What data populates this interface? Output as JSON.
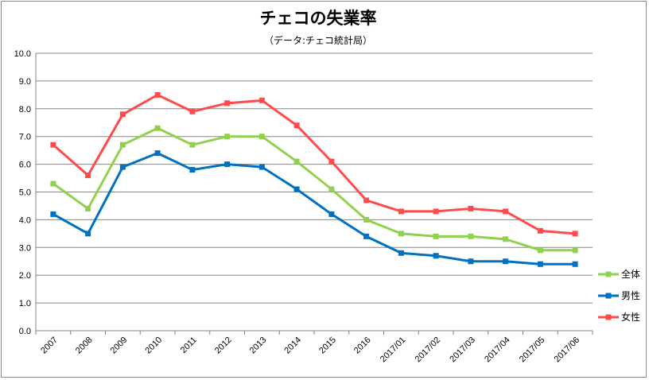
{
  "chart_data": {
    "type": "line",
    "title": "チェコの失業率",
    "subtitle": "（データ:チェコ統計局）",
    "categories": [
      "2007",
      "2008",
      "2009",
      "2010",
      "2011",
      "2012",
      "2013",
      "2014",
      "2015",
      "2016",
      "2017/01",
      "2017/02",
      "2017/03",
      "2017/04",
      "2017/05",
      "2017/06"
    ],
    "ylim": [
      0,
      10
    ],
    "yticks": [
      "0.0",
      "1.0",
      "2.0",
      "3.0",
      "4.0",
      "5.0",
      "6.0",
      "7.0",
      "8.0",
      "9.0",
      "10.0"
    ],
    "grid": true,
    "legend_position": "right",
    "series": [
      {
        "name": "全体",
        "color": "#92d050",
        "values": [
          5.3,
          4.4,
          6.7,
          7.3,
          6.7,
          7.0,
          7.0,
          6.1,
          5.1,
          4.0,
          3.5,
          3.4,
          3.4,
          3.3,
          2.9,
          2.9
        ]
      },
      {
        "name": "男性",
        "color": "#0070c0",
        "values": [
          4.2,
          3.5,
          5.9,
          6.4,
          5.8,
          6.0,
          5.9,
          5.1,
          4.2,
          3.4,
          2.8,
          2.7,
          2.5,
          2.5,
          2.4,
          2.4
        ]
      },
      {
        "name": "女性",
        "color": "#ff4b4b",
        "values": [
          6.7,
          5.6,
          7.8,
          8.5,
          7.9,
          8.2,
          8.3,
          7.4,
          6.1,
          4.7,
          4.3,
          4.3,
          4.4,
          4.3,
          3.6,
          3.5
        ]
      }
    ]
  }
}
